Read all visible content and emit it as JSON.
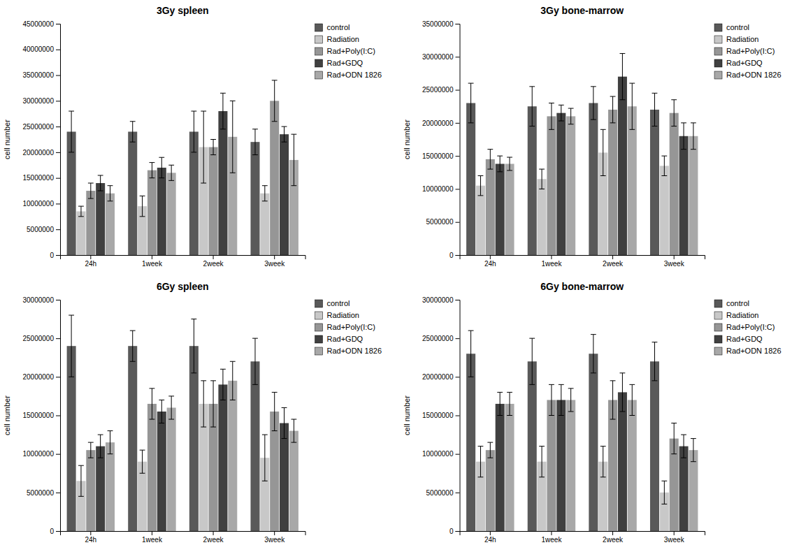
{
  "chart_data": [
    {
      "type": "bar",
      "title": "3Gy spleen",
      "ylabel": "cell number",
      "categories": [
        "24h",
        "1week",
        "2week",
        "3week"
      ],
      "series": [
        {
          "name": "control",
          "color": "#595959",
          "values": [
            24000000,
            24000000,
            24000000,
            22000000
          ],
          "errors": [
            4000000,
            2000000,
            4000000,
            2500000
          ]
        },
        {
          "name": "Radiation",
          "color": "#c8c8c8",
          "values": [
            8500000,
            9500000,
            21000000,
            12000000
          ],
          "errors": [
            1000000,
            2000000,
            7000000,
            1500000
          ]
        },
        {
          "name": "Rad+Poly(I:C)",
          "color": "#969696",
          "values": [
            12500000,
            16500000,
            21000000,
            30000000
          ],
          "errors": [
            1500000,
            1500000,
            1500000,
            4000000
          ]
        },
        {
          "name": "Rad+GDQ",
          "color": "#404040",
          "values": [
            14000000,
            17000000,
            28000000,
            23500000
          ],
          "errors": [
            1500000,
            2000000,
            3500000,
            1500000
          ]
        },
        {
          "name": "Rad+ODN 1826",
          "color": "#a8a8a8",
          "values": [
            12000000,
            16000000,
            23000000,
            18500000
          ],
          "errors": [
            1500000,
            1500000,
            7000000,
            5000000
          ]
        }
      ],
      "ylim": [
        0,
        45000000
      ],
      "yticks": [
        0,
        5000000,
        10000000,
        15000000,
        20000000,
        25000000,
        30000000,
        35000000,
        40000000,
        45000000
      ],
      "grid": false,
      "legend": "upper right"
    },
    {
      "type": "bar",
      "title": "3Gy bone-marrow",
      "ylabel": "cell number",
      "categories": [
        "24h",
        "1week",
        "2week",
        "3week"
      ],
      "series": [
        {
          "name": "control",
          "color": "#595959",
          "values": [
            23000000,
            22500000,
            23000000,
            22000000
          ],
          "errors": [
            3000000,
            3000000,
            2500000,
            2500000
          ]
        },
        {
          "name": "Radiation",
          "color": "#c8c8c8",
          "values": [
            10500000,
            11500000,
            15500000,
            13500000
          ],
          "errors": [
            1500000,
            1500000,
            3500000,
            1500000
          ]
        },
        {
          "name": "Rad+Poly(I:C)",
          "color": "#969696",
          "values": [
            14500000,
            21000000,
            22000000,
            21500000
          ],
          "errors": [
            1500000,
            2000000,
            2000000,
            2000000
          ]
        },
        {
          "name": "Rad+GDQ",
          "color": "#404040",
          "values": [
            13800000,
            21500000,
            27000000,
            18000000
          ],
          "errors": [
            1200000,
            1200000,
            3500000,
            2000000
          ]
        },
        {
          "name": "Rad+ODN 1826",
          "color": "#a8a8a8",
          "values": [
            13800000,
            21000000,
            22500000,
            18000000
          ],
          "errors": [
            1000000,
            1200000,
            3500000,
            2000000
          ]
        }
      ],
      "ylim": [
        0,
        35000000
      ],
      "yticks": [
        0,
        5000000,
        10000000,
        15000000,
        20000000,
        25000000,
        30000000,
        35000000
      ],
      "grid": false,
      "legend": "upper right"
    },
    {
      "type": "bar",
      "title": "6Gy spleen",
      "ylabel": "cell number",
      "categories": [
        "24h",
        "1week",
        "2week",
        "3week"
      ],
      "series": [
        {
          "name": "control",
          "color": "#595959",
          "values": [
            24000000,
            24000000,
            24000000,
            22000000
          ],
          "errors": [
            4000000,
            2000000,
            3500000,
            3000000
          ]
        },
        {
          "name": "Radiation",
          "color": "#c8c8c8",
          "values": [
            6500000,
            9000000,
            16500000,
            9500000
          ],
          "errors": [
            2000000,
            1500000,
            3000000,
            3000000
          ]
        },
        {
          "name": "Rad+Poly(I:C)",
          "color": "#969696",
          "values": [
            10500000,
            16500000,
            16500000,
            15500000
          ],
          "errors": [
            1000000,
            2000000,
            3000000,
            2500000
          ]
        },
        {
          "name": "Rad+GDQ",
          "color": "#404040",
          "values": [
            11000000,
            15500000,
            19000000,
            14000000
          ],
          "errors": [
            1500000,
            1500000,
            2000000,
            2000000
          ]
        },
        {
          "name": "Rad+ODN 1826",
          "color": "#a8a8a8",
          "values": [
            11500000,
            16000000,
            19500000,
            13000000
          ],
          "errors": [
            1500000,
            1500000,
            2500000,
            1500000
          ]
        }
      ],
      "ylim": [
        0,
        30000000
      ],
      "yticks": [
        0,
        5000000,
        10000000,
        15000000,
        20000000,
        25000000,
        30000000
      ],
      "grid": false,
      "legend": "upper right"
    },
    {
      "type": "bar",
      "title": "6Gy bone-marrow",
      "ylabel": "cell number",
      "categories": [
        "24h",
        "1week",
        "2week",
        "3week"
      ],
      "series": [
        {
          "name": "control",
          "color": "#595959",
          "values": [
            23000000,
            22000000,
            23000000,
            22000000
          ],
          "errors": [
            3000000,
            3000000,
            2500000,
            2500000
          ]
        },
        {
          "name": "Radiation",
          "color": "#c8c8c8",
          "values": [
            9000000,
            9000000,
            9000000,
            5000000
          ],
          "errors": [
            2000000,
            2000000,
            2000000,
            1500000
          ]
        },
        {
          "name": "Rad+Poly(I:C)",
          "color": "#969696",
          "values": [
            10500000,
            17000000,
            17000000,
            12000000
          ],
          "errors": [
            1000000,
            2000000,
            2500000,
            2000000
          ]
        },
        {
          "name": "Rad+GDQ",
          "color": "#404040",
          "values": [
            16500000,
            17000000,
            18000000,
            11000000
          ],
          "errors": [
            1500000,
            2000000,
            2500000,
            1500000
          ]
        },
        {
          "name": "Rad+ODN 1826",
          "color": "#a8a8a8",
          "values": [
            16500000,
            17000000,
            17000000,
            10500000
          ],
          "errors": [
            1500000,
            1500000,
            2000000,
            1500000
          ]
        }
      ],
      "ylim": [
        0,
        30000000
      ],
      "yticks": [
        0,
        5000000,
        10000000,
        15000000,
        20000000,
        25000000,
        30000000
      ],
      "grid": false,
      "legend": "upper right"
    }
  ]
}
